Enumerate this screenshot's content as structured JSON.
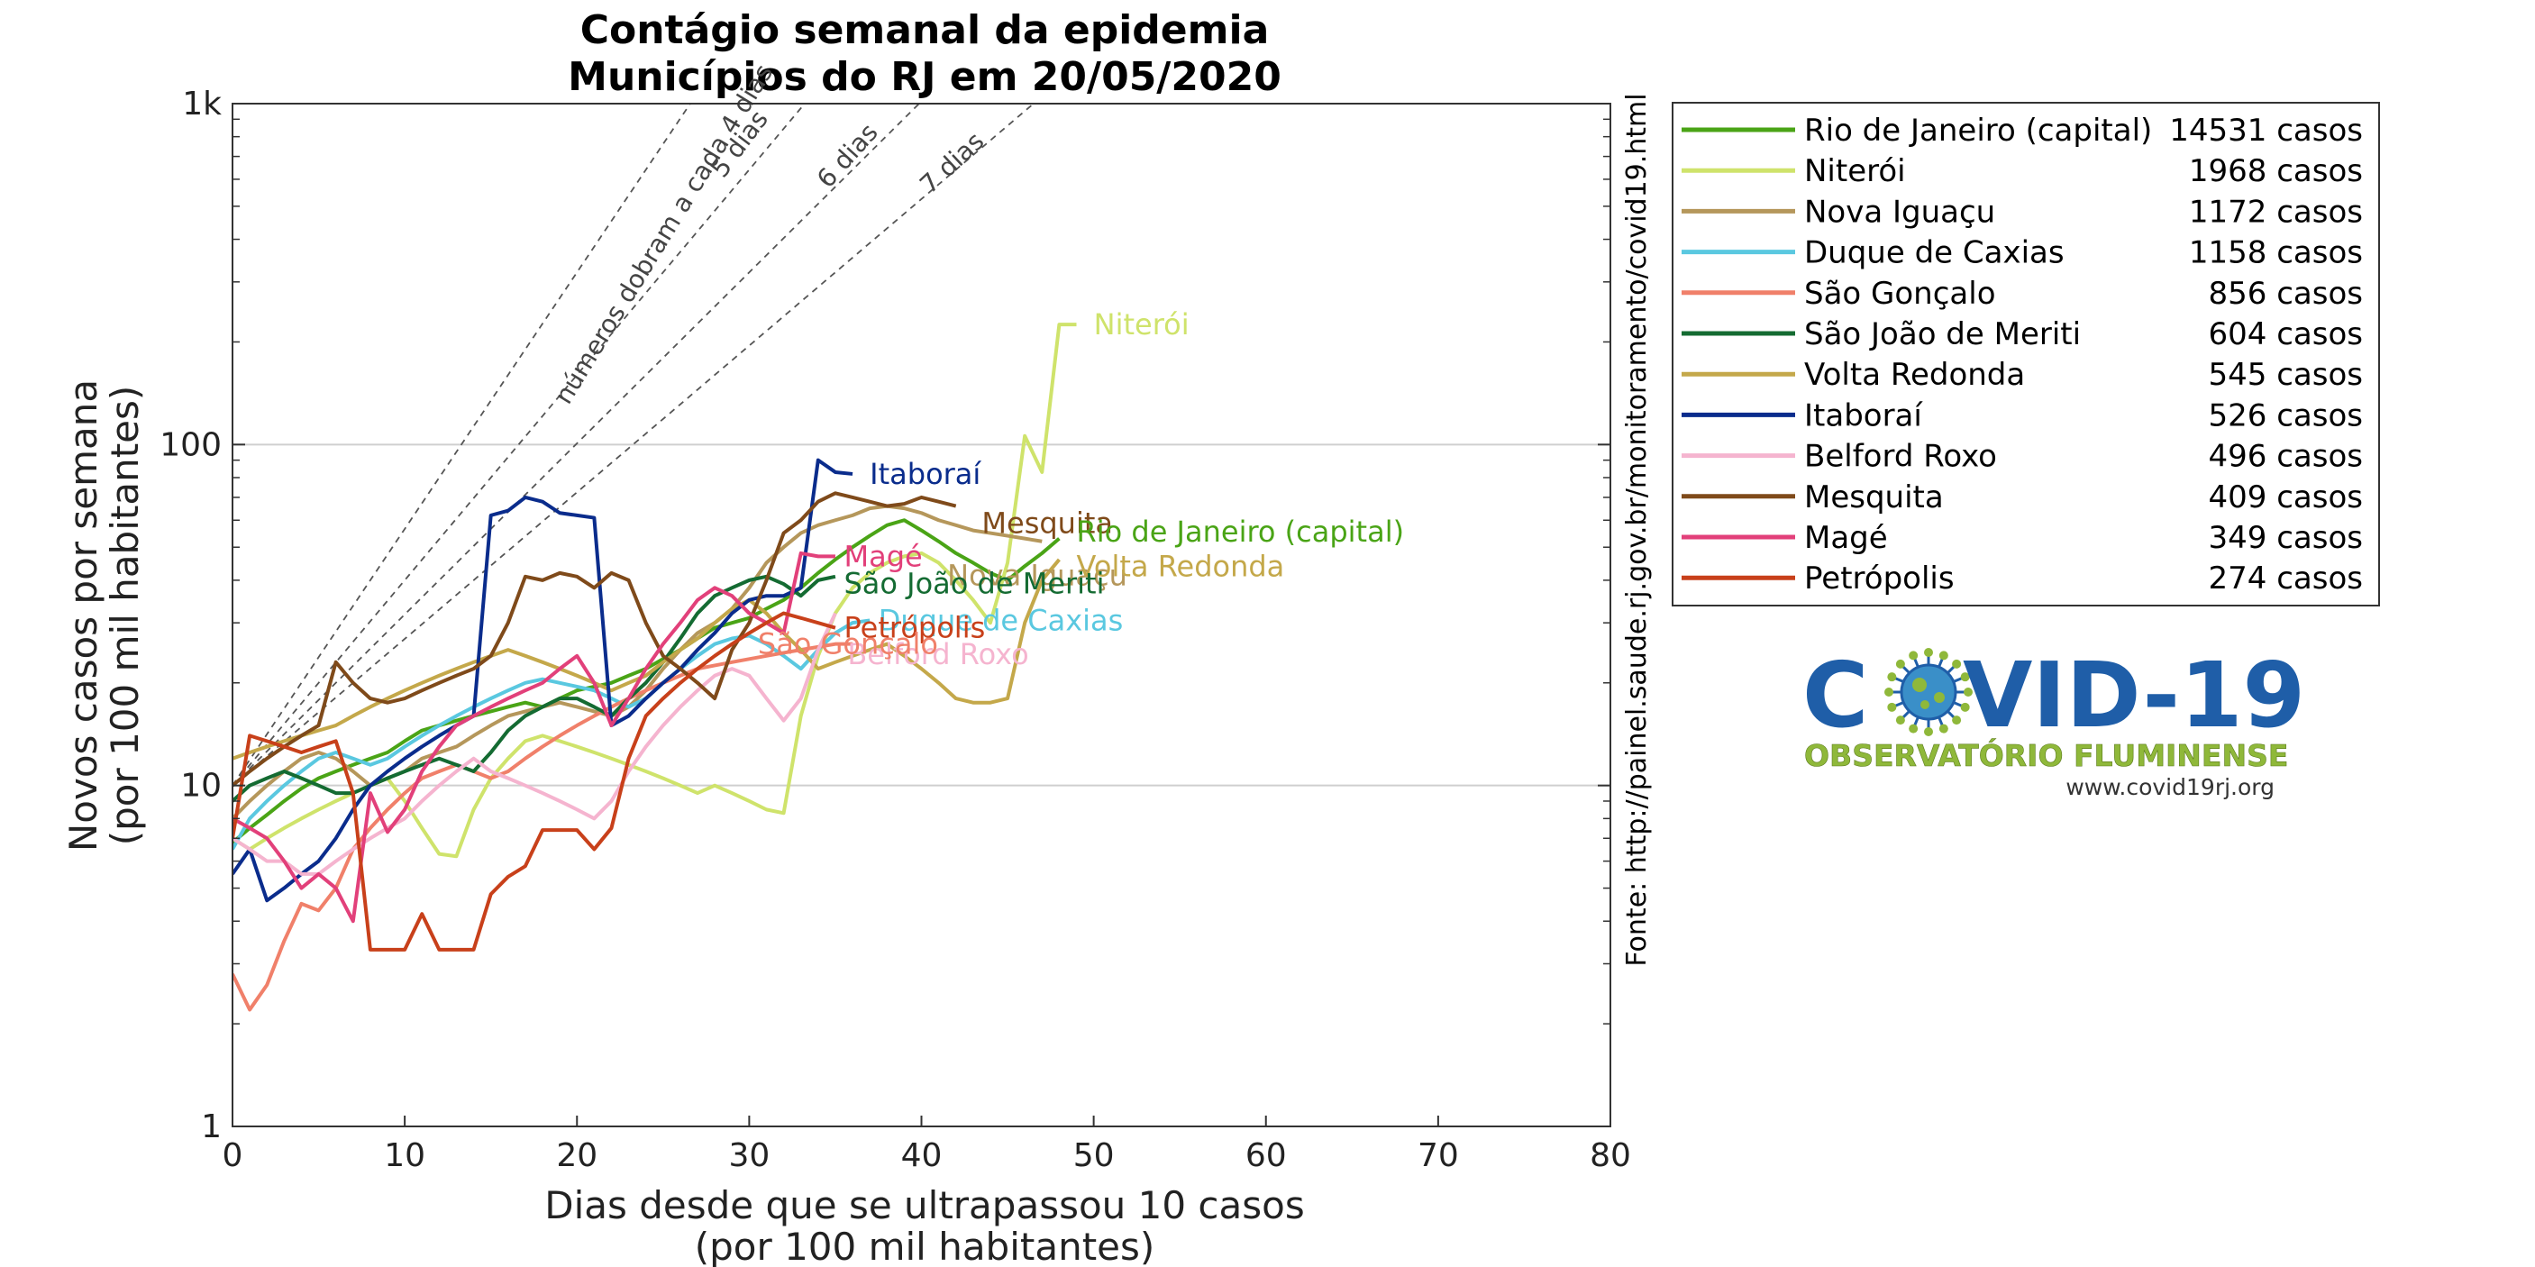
{
  "chart_data": {
    "type": "line",
    "title": "Contágio semanal da epidemia",
    "subtitle": "Municípios do RJ em 20/05/2020",
    "xlabel": "Dias desde que se ultrapassou 10 casos",
    "xlabel2": "(por 100 mil habitantes)",
    "ylabel": "Novos casos por semana",
    "ylabel2": "(por 100 mil habitantes)",
    "xlim": [
      0,
      80
    ],
    "ylim": [
      1,
      1000
    ],
    "yscale": "log",
    "x_ticks": [
      0,
      10,
      20,
      30,
      40,
      50,
      60,
      70,
      80
    ],
    "y_ticks": [
      1,
      10,
      100,
      1000
    ],
    "y_tick_labels": [
      "1",
      "10",
      "100",
      "1k"
    ],
    "grid": "horizontal at 10 and 100",
    "legend_position": "outside right",
    "source": "Fonte: http://painel.saude.rj.gov.br/monitoramento/covid19.html",
    "reference_lines": [
      {
        "label": "números dobram a cada 4 dias",
        "doubling_days": 4
      },
      {
        "label": "5 dias",
        "doubling_days": 5
      },
      {
        "label": "6 dias",
        "doubling_days": 6
      },
      {
        "label": "7 dias",
        "doubling_days": 7
      }
    ],
    "series": [
      {
        "name": "Rio de Janeiro (capital)",
        "cases": "14531 casos",
        "color": "#4aa416",
        "x": [
          0,
          1,
          2,
          3,
          4,
          5,
          6,
          7,
          8,
          9,
          10,
          11,
          12,
          13,
          14,
          15,
          16,
          17,
          18,
          19,
          20,
          21,
          22,
          23,
          24,
          25,
          26,
          27,
          28,
          29,
          30,
          31,
          32,
          33,
          34,
          35,
          36,
          37,
          38,
          39,
          40,
          41,
          42,
          43,
          44,
          45,
          46,
          47,
          48
        ],
        "y": [
          6.8,
          7.5,
          8.2,
          9.0,
          9.8,
          10.5,
          11.0,
          11.5,
          12.0,
          12.5,
          13.5,
          14.5,
          15.0,
          15.5,
          16.0,
          16.5,
          17.0,
          17.5,
          17.0,
          18.0,
          19.0,
          19.5,
          20.0,
          21.0,
          22.0,
          23.5,
          25.0,
          27.0,
          29.0,
          30.0,
          31.0,
          33.0,
          35.0,
          38.0,
          42.0,
          46.0,
          50.0,
          54.0,
          58.0,
          60.0,
          56.0,
          52.0,
          48.0,
          45.0,
          42.0,
          40.0,
          44.0,
          48.0,
          53.0
        ]
      },
      {
        "name": "Niterói",
        "cases": "1968 casos",
        "color": "#cfe36b",
        "x": [
          0,
          1,
          2,
          3,
          4,
          5,
          6,
          7,
          8,
          9,
          10,
          11,
          12,
          13,
          14,
          15,
          16,
          17,
          18,
          19,
          20,
          21,
          22,
          23,
          24,
          25,
          26,
          27,
          28,
          29,
          30,
          31,
          32,
          33,
          34,
          35,
          36,
          37,
          38,
          39,
          40,
          41,
          42,
          43,
          44,
          45,
          46,
          47,
          48,
          49
        ],
        "y": [
          7.0,
          6.5,
          7.0,
          7.5,
          8.0,
          8.5,
          9.0,
          9.5,
          10.0,
          10.5,
          9.0,
          7.5,
          6.3,
          6.2,
          8.5,
          10.5,
          12.0,
          13.5,
          14.0,
          13.5,
          13.0,
          12.5,
          12.0,
          11.5,
          11.0,
          10.5,
          10.0,
          9.5,
          10.0,
          9.5,
          9.0,
          8.5,
          8.3,
          16.0,
          24.0,
          32.0,
          38.0,
          42.0,
          45.0,
          47.0,
          48.0,
          45.0,
          40.0,
          35.0,
          30.0,
          45.0,
          106.0,
          83.0,
          225.0,
          225.0
        ]
      },
      {
        "name": "Nova Iguaçu",
        "cases": "1172 casos",
        "color": "#b5975b",
        "x": [
          0,
          1,
          2,
          3,
          4,
          5,
          6,
          7,
          8,
          9,
          10,
          11,
          12,
          13,
          14,
          15,
          16,
          17,
          18,
          19,
          20,
          21,
          22,
          23,
          24,
          25,
          26,
          27,
          28,
          29,
          30,
          31,
          32,
          33,
          34,
          35,
          36,
          37,
          38,
          39,
          40,
          41,
          42,
          43,
          44,
          45,
          46,
          47
        ],
        "y": [
          8.0,
          9.0,
          10.0,
          11.0,
          12.0,
          12.5,
          12.0,
          11.0,
          10.0,
          10.5,
          11.0,
          12.0,
          12.5,
          13.0,
          14.0,
          15.0,
          16.0,
          16.5,
          17.0,
          17.5,
          17.0,
          16.5,
          16.0,
          17.0,
          19.0,
          22.0,
          25.0,
          28.0,
          30.0,
          33.0,
          38.0,
          45.0,
          50.0,
          55.0,
          58.0,
          60.0,
          62.0,
          65.0,
          66.0,
          65.0,
          63.0,
          60.0,
          58.0,
          56.0,
          55.0,
          54.0,
          53.0,
          52.0
        ]
      },
      {
        "name": "Duque de Caxias",
        "cases": "1158 casos",
        "color": "#5ac8e0",
        "x": [
          0,
          1,
          2,
          3,
          4,
          5,
          6,
          7,
          8,
          9,
          10,
          11,
          12,
          13,
          14,
          15,
          16,
          17,
          18,
          19,
          20,
          21,
          22,
          23,
          24,
          25,
          26,
          27,
          28,
          29,
          30,
          31,
          32,
          33,
          34,
          35,
          36,
          37
        ],
        "y": [
          6.5,
          8.0,
          9.0,
          10.0,
          11.0,
          12.0,
          12.5,
          12.0,
          11.5,
          12.0,
          13.0,
          14.0,
          15.0,
          16.0,
          17.0,
          18.0,
          19.0,
          20.0,
          20.5,
          20.0,
          19.5,
          19.0,
          18.0,
          17.0,
          18.0,
          20.0,
          22.0,
          24.0,
          26.0,
          27.0,
          27.5,
          26.0,
          24.0,
          22.0,
          25.0,
          28.0,
          30.0,
          30.5
        ]
      },
      {
        "name": "São Gonçalo",
        "cases": "856 casos",
        "color": "#f0806a",
        "x": [
          0,
          1,
          2,
          3,
          4,
          5,
          6,
          7,
          8,
          9,
          10,
          11,
          12,
          13,
          14,
          15,
          16,
          17,
          18,
          19,
          20,
          21,
          22,
          23,
          24,
          25,
          26,
          27,
          28,
          29,
          30,
          31,
          32,
          33,
          34,
          35,
          36
        ],
        "y": [
          2.8,
          2.2,
          2.6,
          3.5,
          4.5,
          4.3,
          5.0,
          6.5,
          7.5,
          8.5,
          9.5,
          10.5,
          11.0,
          11.5,
          11.0,
          10.5,
          11.0,
          12.0,
          13.0,
          14.0,
          15.0,
          16.0,
          17.0,
          18.0,
          19.0,
          20.0,
          21.0,
          22.0,
          22.5,
          23.0,
          23.5,
          24.0,
          24.5,
          25.0,
          25.5,
          26.0,
          26.0
        ]
      },
      {
        "name": "São João de Meriti",
        "cases": "604 casos",
        "color": "#146b32",
        "x": [
          0,
          1,
          2,
          3,
          4,
          5,
          6,
          7,
          8,
          9,
          10,
          11,
          12,
          13,
          14,
          15,
          16,
          17,
          18,
          19,
          20,
          21,
          22,
          23,
          24,
          25,
          26,
          27,
          28,
          29,
          30,
          31,
          32,
          33,
          34,
          35
        ],
        "y": [
          9.0,
          10.0,
          10.5,
          11.0,
          10.5,
          10.0,
          9.5,
          9.5,
          10.0,
          10.5,
          11.0,
          11.5,
          12.0,
          11.5,
          11.0,
          12.5,
          14.5,
          16.0,
          17.0,
          18.0,
          18.0,
          17.0,
          16.0,
          18.0,
          20.0,
          23.0,
          27.0,
          32.0,
          36.0,
          38.0,
          40.0,
          41.0,
          39.0,
          36.0,
          40.0,
          41.0
        ]
      },
      {
        "name": "Volta Redonda",
        "cases": "545 casos",
        "color": "#c4a84a",
        "x": [
          0,
          1,
          2,
          3,
          4,
          5,
          6,
          7,
          8,
          9,
          10,
          11,
          12,
          13,
          14,
          15,
          16,
          17,
          18,
          19,
          20,
          21,
          22,
          23,
          24,
          25,
          26,
          27,
          28,
          29,
          30,
          31,
          32,
          33,
          34,
          35,
          36,
          37,
          38,
          39,
          40,
          41,
          42,
          43,
          44,
          45,
          46,
          47,
          48
        ],
        "y": [
          12.0,
          12.5,
          13.0,
          13.5,
          14.0,
          14.5,
          15.0,
          16.0,
          17.0,
          18.0,
          19.0,
          20.0,
          21.0,
          22.0,
          23.0,
          24.0,
          25.0,
          24.0,
          23.0,
          22.0,
          21.0,
          20.0,
          19.0,
          20.0,
          21.0,
          23.0,
          25.0,
          27.0,
          30.0,
          33.0,
          35.0,
          32.0,
          28.0,
          25.0,
          22.0,
          23.0,
          24.0,
          25.0,
          26.0,
          24.0,
          22.0,
          20.0,
          18.0,
          17.5,
          17.5,
          18.0,
          30.0,
          40.0,
          46.0
        ]
      },
      {
        "name": "Itaboraí",
        "cases": "526 casos",
        "color": "#0a2c8c",
        "x": [
          0,
          1,
          2,
          3,
          4,
          5,
          6,
          7,
          8,
          9,
          10,
          11,
          12,
          13,
          14,
          15,
          16,
          17,
          18,
          19,
          20,
          21,
          22,
          23,
          24,
          25,
          26,
          27,
          28,
          29,
          30,
          31,
          32,
          33,
          34,
          35,
          36
        ],
        "y": [
          5.5,
          6.5,
          4.6,
          5.0,
          5.5,
          6.0,
          7.0,
          8.5,
          10.0,
          11.0,
          12.0,
          13.0,
          14.0,
          15.0,
          16.0,
          62.0,
          64.0,
          70.0,
          68.0,
          63.0,
          62.0,
          61.0,
          15.0,
          16.0,
          18.0,
          20.0,
          22.0,
          25.0,
          28.0,
          32.0,
          35.0,
          36.0,
          36.0,
          38.0,
          90.0,
          83.0,
          82.0
        ]
      },
      {
        "name": "Belford Roxo",
        "cases": "496 casos",
        "color": "#f5b4cf",
        "x": [
          0,
          1,
          2,
          3,
          4,
          5,
          6,
          7,
          8,
          9,
          10,
          11,
          12,
          13,
          14,
          15,
          16,
          17,
          18,
          19,
          20,
          21,
          22,
          23,
          24,
          25,
          26,
          27,
          28,
          29,
          30,
          31,
          32,
          33,
          34,
          35
        ],
        "y": [
          7.0,
          6.5,
          6.0,
          6.0,
          5.5,
          5.5,
          6.0,
          6.5,
          7.0,
          7.5,
          8.0,
          9.0,
          10.0,
          11.0,
          12.0,
          11.0,
          10.5,
          10.0,
          9.5,
          9.0,
          8.5,
          8.0,
          9.0,
          11.0,
          13.0,
          15.0,
          17.0,
          19.0,
          21.0,
          22.0,
          21.0,
          18.0,
          15.5,
          18.0,
          25.0,
          32.0
        ]
      },
      {
        "name": "Mesquita",
        "cases": "409 casos",
        "color": "#7f4a1a",
        "x": [
          0,
          1,
          2,
          3,
          4,
          5,
          6,
          7,
          8,
          9,
          10,
          11,
          12,
          13,
          14,
          15,
          16,
          17,
          18,
          19,
          20,
          21,
          22,
          23,
          24,
          25,
          26,
          27,
          28,
          29,
          30,
          31,
          32,
          33,
          34,
          35,
          36,
          37,
          38,
          39,
          40,
          41,
          42
        ],
        "y": [
          10.0,
          11.0,
          12.0,
          13.0,
          14.0,
          15.0,
          23.0,
          20.0,
          18.0,
          17.5,
          18.0,
          19.0,
          20.0,
          21.0,
          22.0,
          24.0,
          30.0,
          41.0,
          40.0,
          42.0,
          41.0,
          38.0,
          42.0,
          40.0,
          30.0,
          24.0,
          22.0,
          20.0,
          18.0,
          25.0,
          30.0,
          40.0,
          55.0,
          60.0,
          68.0,
          72.0,
          70.0,
          68.0,
          66.0,
          67.0,
          70.0,
          68.0,
          66.0
        ]
      },
      {
        "name": "Magé",
        "cases": "349 casos",
        "color": "#e2407a",
        "x": [
          0,
          1,
          2,
          3,
          4,
          5,
          6,
          7,
          8,
          9,
          10,
          11,
          12,
          13,
          14,
          15,
          16,
          17,
          18,
          19,
          20,
          21,
          22,
          23,
          24,
          25,
          26,
          27,
          28,
          29,
          30,
          31,
          32,
          33,
          34,
          35
        ],
        "y": [
          8.0,
          7.5,
          7.0,
          6.0,
          5.0,
          5.5,
          5.0,
          4.0,
          9.5,
          7.3,
          8.5,
          11.0,
          13.0,
          15.0,
          16.0,
          17.0,
          18.0,
          19.0,
          20.0,
          22.0,
          24.0,
          20.0,
          15.0,
          18.0,
          22.0,
          26.0,
          30.0,
          35.0,
          38.0,
          36.0,
          32.0,
          30.0,
          28.0,
          48.0,
          47.0,
          47.0
        ]
      },
      {
        "name": "Petrópolis",
        "cases": "274 casos",
        "color": "#c8401a",
        "x": [
          0,
          1,
          2,
          3,
          4,
          5,
          6,
          7,
          8,
          9,
          10,
          11,
          12,
          13,
          14,
          15,
          16,
          17,
          18,
          19,
          20,
          21,
          22,
          23,
          24,
          25,
          26,
          27,
          28,
          29,
          30,
          31,
          32,
          33,
          34,
          35
        ],
        "y": [
          7.0,
          14.0,
          13.5,
          13.0,
          12.5,
          13.0,
          13.5,
          9.5,
          3.3,
          3.3,
          3.3,
          4.2,
          3.3,
          3.3,
          3.3,
          4.8,
          5.4,
          5.8,
          7.4,
          7.4,
          7.4,
          6.5,
          7.5,
          12.0,
          16.0,
          18.0,
          20.0,
          22.0,
          24.0,
          26.0,
          28.0,
          30.0,
          32.0,
          31.0,
          30.0,
          29.0
        ]
      }
    ],
    "end_labels": [
      {
        "series": "Niterói",
        "text": "Niterói"
      },
      {
        "series": "Itaboraí",
        "text": "Itaboraí"
      },
      {
        "series": "Mesquita",
        "text": "Mesquita"
      },
      {
        "series": "Nova Iguaçu",
        "text": "Nova Iguaçu"
      },
      {
        "series": "Rio de Janeiro (capital)",
        "text": "Rio de Janeiro (capital)"
      },
      {
        "series": "Volta Redonda",
        "text": "Volta Redonda"
      },
      {
        "series": "Magé",
        "text": "Magé"
      },
      {
        "series": "São João de Meriti",
        "text": "São João de Meriti"
      },
      {
        "series": "Belford Roxo",
        "text": "Belford Roxo"
      },
      {
        "series": "Duque de Caxias",
        "text": "Duque de Caxias"
      },
      {
        "series": "Petrópolis",
        "text": "Petrópolis"
      },
      {
        "series": "São Gonçalo",
        "text": "São Gonçalo"
      }
    ]
  },
  "logo": {
    "title": "COVID-19",
    "subtitle": "OBSERVATÓRIO FLUMINENSE",
    "url": "www.covid19rj.org",
    "colors": {
      "title": "#1f5ea8",
      "subtitle": "#8fb83a",
      "virus": "#3a8fc8"
    }
  }
}
